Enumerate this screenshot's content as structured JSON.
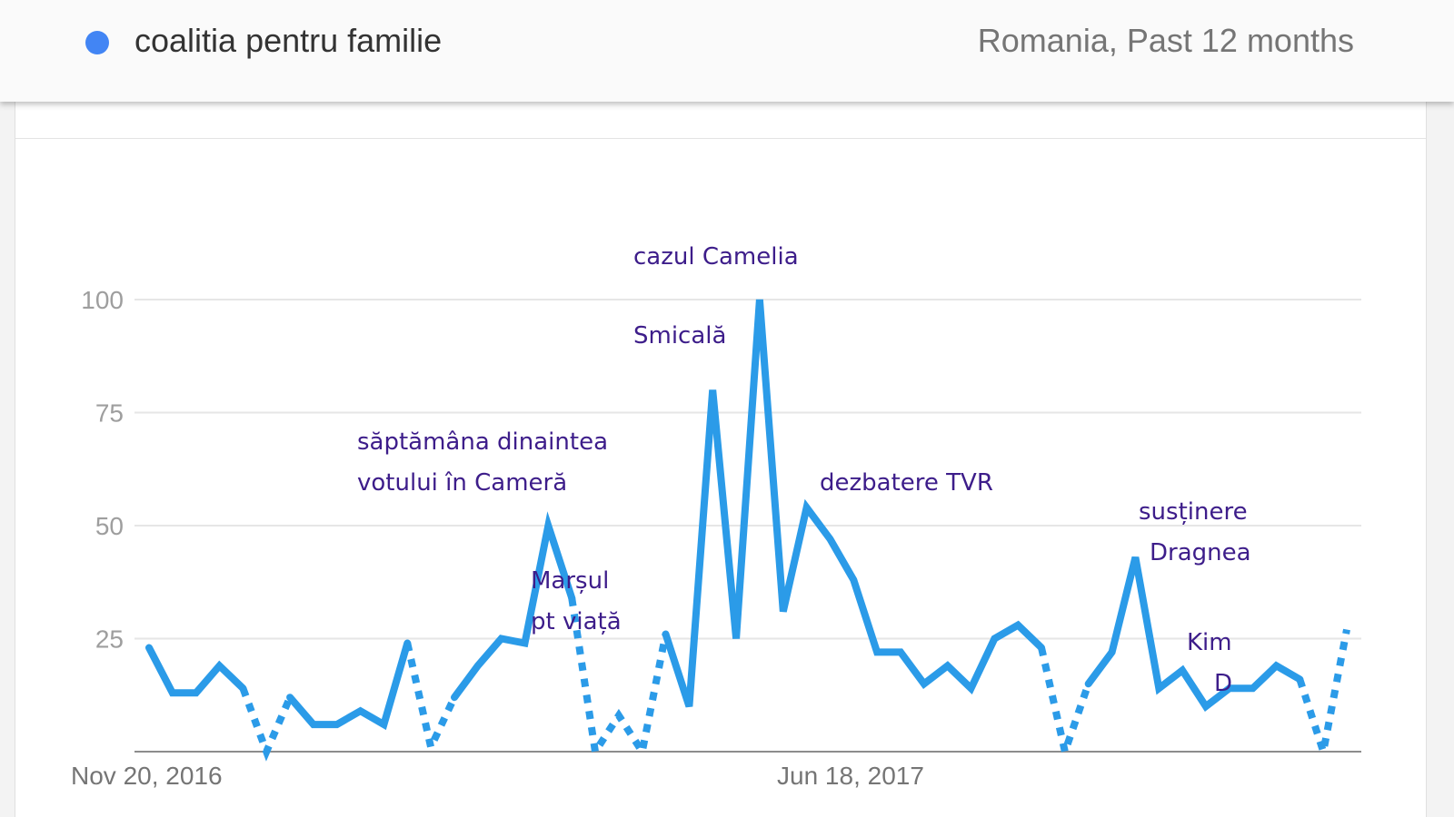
{
  "header": {
    "term": "coalitia pentru familie",
    "scope": "Romania, Past 12 months",
    "series_color": "#4285f4"
  },
  "chart_data": {
    "type": "line",
    "y_ticks": [
      "100",
      "75",
      "50",
      "25"
    ],
    "x_tick_labels": [
      "Nov 20, 2016",
      "Jun 18, 2017"
    ],
    "ylim": [
      0,
      100
    ],
    "grid": true,
    "line_color": "#2b9be8",
    "series": [
      {
        "values": [
          23,
          13,
          13,
          19,
          14,
          0,
          12,
          6,
          6,
          9,
          6,
          24,
          1,
          12,
          19,
          25,
          24,
          50,
          34,
          0,
          8,
          0,
          26,
          10,
          80,
          25,
          100,
          31,
          54,
          47,
          38,
          22,
          22,
          15,
          19,
          14,
          25,
          28,
          23,
          0,
          15,
          22,
          43,
          14,
          18,
          10,
          14,
          14,
          19,
          16,
          0,
          27
        ],
        "dotted_segments": [
          [
            4,
            6
          ],
          [
            11,
            13
          ],
          [
            18,
            22
          ],
          [
            38,
            40
          ],
          [
            49,
            51
          ]
        ]
      }
    ],
    "annotations": [
      {
        "lines": [
          "cazul Camelia"
        ]
      },
      {
        "lines": [
          "Smicală"
        ]
      },
      {
        "lines": [
          "săptămâna dinaintea",
          "votului în Cameră"
        ]
      },
      {
        "lines": [
          "Marșul",
          "pt viață"
        ]
      },
      {
        "lines": [
          "dezbatere TVR"
        ]
      },
      {
        "lines": [
          "susținere",
          "Dragnea"
        ]
      },
      {
        "lines": [
          "Kim",
          "D"
        ]
      }
    ]
  }
}
